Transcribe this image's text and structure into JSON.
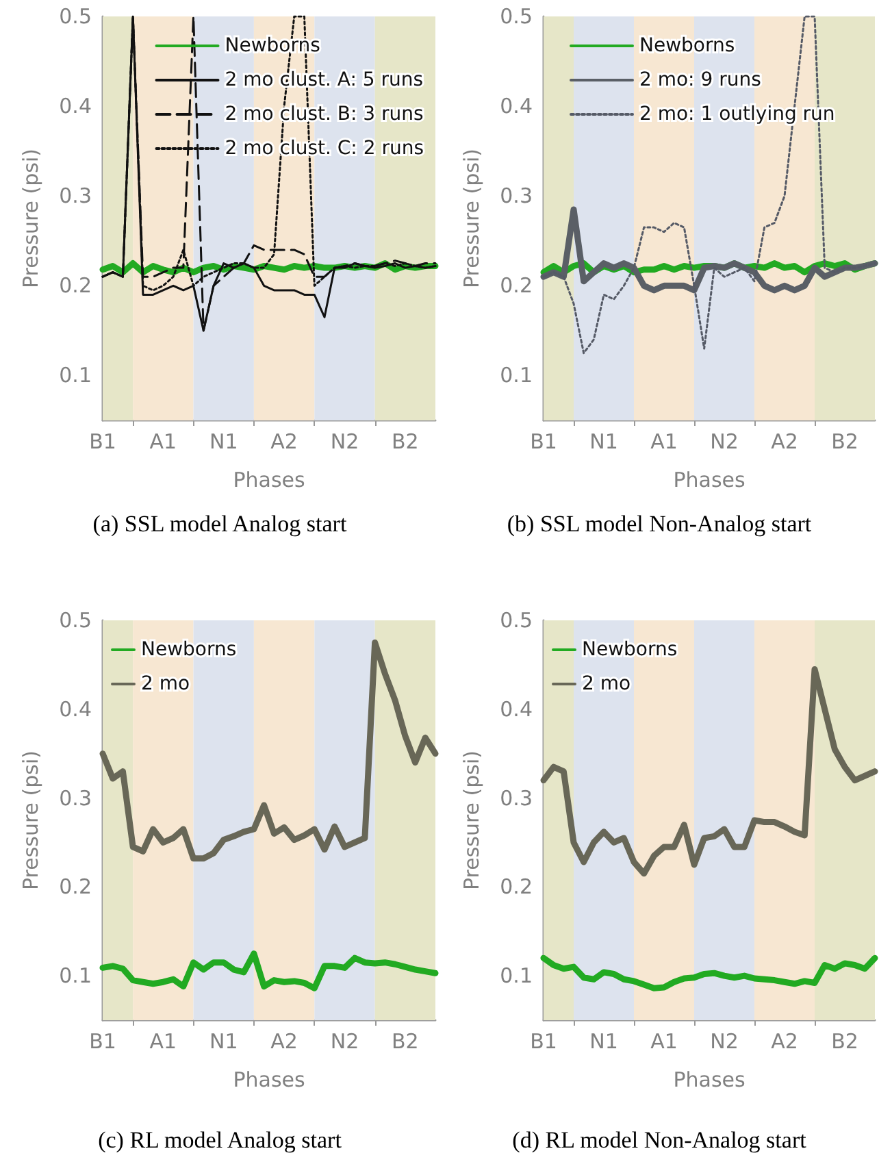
{
  "chart_data": [
    {
      "type": "line",
      "title": "(a) SSL model Analog start",
      "xlabel": "Phases",
      "ylabel": "Pressure (psi)",
      "legend": "top right",
      "grid": false,
      "categories": [
        "B1",
        null,
        null,
        null,
        null,
        null,
        "A1",
        null,
        null,
        null,
        null,
        null,
        "N1",
        null,
        null,
        null,
        null,
        null,
        "A2",
        null,
        null,
        null,
        null,
        null,
        "N2",
        null,
        null,
        null,
        null,
        null,
        "B2",
        null,
        null,
        null
      ],
      "ylim": [
        0.05,
        0.5
      ],
      "yticks": [
        0.1,
        0.2,
        0.3,
        0.4,
        0.5
      ],
      "series": [
        {
          "name": "Newborns",
          "color": "#22aa22",
          "line_style": "solid",
          "values": [
            0.218,
            0.222,
            0.215,
            0.225,
            0.215,
            0.222,
            0.218,
            0.215,
            0.22,
            0.215,
            0.22,
            0.222,
            0.218,
            0.222,
            0.22,
            0.218,
            0.222,
            0.22,
            0.218,
            0.222,
            0.22,
            0.222,
            0.22,
            0.22,
            0.222,
            0.22,
            0.222,
            0.22,
            0.225,
            0.218,
            0.222,
            0.22,
            0.222,
            0.222
          ]
        },
        {
          "name": "2 mo clust. A: 5 runs",
          "color": "#111111",
          "line_style": "solid",
          "values": [
            0.21,
            0.215,
            0.21,
            0.5,
            0.19,
            0.19,
            0.195,
            0.2,
            0.195,
            0.2,
            0.15,
            0.2,
            0.225,
            0.22,
            0.225,
            0.22,
            0.2,
            0.195,
            0.195,
            0.195,
            0.19,
            0.19,
            0.165,
            0.22,
            0.22,
            0.225,
            0.222,
            0.22,
            0.222,
            0.225,
            0.22,
            0.222,
            0.22,
            0.222
          ]
        },
        {
          "name": "2 mo clust. B: 3 runs",
          "color": "#111111",
          "line_style": "dashed",
          "values": [
            0.21,
            0.215,
            0.21,
            0.5,
            0.21,
            0.21,
            0.215,
            0.22,
            0.22,
            0.5,
            0.15,
            0.2,
            0.21,
            0.22,
            0.225,
            0.245,
            0.24,
            0.24,
            0.24,
            0.24,
            0.235,
            0.21,
            0.21,
            0.22,
            0.222,
            0.225,
            0.222,
            0.222,
            0.225,
            0.228,
            0.225,
            0.222,
            0.225,
            0.225
          ]
        },
        {
          "name": "2 mo clust. C: 2 runs",
          "color": "#111111",
          "line_style": "dotted",
          "values": [
            0.21,
            0.215,
            0.21,
            0.5,
            0.2,
            0.195,
            0.2,
            0.21,
            0.24,
            0.2,
            0.21,
            0.215,
            0.22,
            0.225,
            0.225,
            0.22,
            0.22,
            0.235,
            0.4,
            0.5,
            0.5,
            0.2,
            0.21,
            0.22,
            0.222,
            0.22,
            0.222,
            0.222,
            0.225,
            0.222,
            0.225,
            0.222,
            0.22,
            0.222
          ]
        }
      ]
    },
    {
      "type": "line",
      "title": "(b) SSL model Non-Analog start",
      "xlabel": "Phases",
      "ylabel": "Pressure (psi)",
      "legend": "top",
      "grid": false,
      "categories": [
        "B1",
        null,
        null,
        null,
        null,
        null,
        "N1",
        null,
        null,
        null,
        null,
        null,
        "A1",
        null,
        null,
        null,
        null,
        null,
        "N2",
        null,
        null,
        null,
        null,
        null,
        "A2",
        null,
        null,
        null,
        null,
        null,
        "B2",
        null,
        null,
        null
      ],
      "ylim": [
        0.05,
        0.5
      ],
      "yticks": [
        0.1,
        0.2,
        0.3,
        0.4,
        0.5
      ],
      "series": [
        {
          "name": "Newborns",
          "color": "#22aa22",
          "line_style": "solid",
          "values": [
            0.215,
            0.222,
            0.215,
            0.222,
            0.225,
            0.215,
            0.222,
            0.218,
            0.222,
            0.215,
            0.218,
            0.218,
            0.222,
            0.218,
            0.222,
            0.22,
            0.222,
            0.222,
            0.22,
            0.225,
            0.22,
            0.222,
            0.22,
            0.225,
            0.22,
            0.222,
            0.215,
            0.222,
            0.225,
            0.222,
            0.225,
            0.218,
            0.222,
            0.225
          ]
        },
        {
          "name": "2 mo: 9 runs",
          "color": "#5a5f66",
          "line_style": "solid",
          "values": [
            0.21,
            0.215,
            0.21,
            0.285,
            0.205,
            0.215,
            0.225,
            0.22,
            0.225,
            0.22,
            0.2,
            0.195,
            0.2,
            0.2,
            0.2,
            0.195,
            0.22,
            0.222,
            0.22,
            0.225,
            0.22,
            0.215,
            0.2,
            0.195,
            0.2,
            0.195,
            0.2,
            0.22,
            0.21,
            0.215,
            0.22,
            0.22,
            0.222,
            0.225
          ]
        },
        {
          "name": "2 mo: 1 outlying run",
          "color": "#555a66",
          "line_style": "dotted",
          "values": [
            0.21,
            0.215,
            0.21,
            0.18,
            0.125,
            0.14,
            0.19,
            0.185,
            0.2,
            0.22,
            0.265,
            0.265,
            0.26,
            0.27,
            0.265,
            0.2,
            0.13,
            0.22,
            0.21,
            0.215,
            0.22,
            0.205,
            0.265,
            0.27,
            0.3,
            0.4,
            0.5,
            0.5,
            0.22,
            0.215,
            0.22,
            0.22,
            0.222,
            0.225
          ]
        }
      ]
    },
    {
      "type": "line",
      "title": "(c) RL model Analog start",
      "xlabel": "Phases",
      "ylabel": "Pressure (psi)",
      "legend": "top left",
      "grid": false,
      "categories": [
        "B1",
        null,
        null,
        null,
        null,
        null,
        "A1",
        null,
        null,
        null,
        null,
        null,
        "N1",
        null,
        null,
        null,
        null,
        null,
        "A2",
        null,
        null,
        null,
        null,
        null,
        "N2",
        null,
        null,
        null,
        null,
        null,
        "B2",
        null,
        null,
        null
      ],
      "ylim": [
        0.05,
        0.5
      ],
      "yticks": [
        0.1,
        0.2,
        0.3,
        0.4,
        0.5
      ],
      "series": [
        {
          "name": "Newborns",
          "color": "#22aa22",
          "line_style": "solid",
          "values": [
            0.109,
            0.111,
            0.108,
            0.095,
            0.093,
            0.091,
            0.093,
            0.096,
            0.088,
            0.115,
            0.107,
            0.115,
            0.115,
            0.107,
            0.104,
            0.125,
            0.088,
            0.095,
            0.093,
            0.094,
            0.092,
            0.086,
            0.111,
            0.111,
            0.109,
            0.12,
            0.115,
            0.114,
            0.115,
            0.113,
            0.11,
            0.107,
            0.105,
            0.103
          ]
        },
        {
          "name": "2 mo",
          "color": "#686757",
          "line_style": "solid",
          "values": [
            0.35,
            0.322,
            0.33,
            0.245,
            0.24,
            0.265,
            0.25,
            0.255,
            0.265,
            0.232,
            0.232,
            0.238,
            0.253,
            0.257,
            0.262,
            0.265,
            0.292,
            0.26,
            0.267,
            0.253,
            0.258,
            0.265,
            0.242,
            0.268,
            0.245,
            0.25,
            0.255,
            0.475,
            0.44,
            0.41,
            0.37,
            0.34,
            0.368,
            0.35
          ]
        }
      ]
    },
    {
      "type": "line",
      "title": "(d) RL model Non-Analog start",
      "xlabel": "Phases",
      "ylabel": "Pressure (psi)",
      "legend": "top left",
      "grid": false,
      "categories": [
        "B1",
        null,
        null,
        null,
        null,
        null,
        "N1",
        null,
        null,
        null,
        null,
        null,
        "A1",
        null,
        null,
        null,
        null,
        null,
        "N2",
        null,
        null,
        null,
        null,
        null,
        "A2",
        null,
        null,
        null,
        null,
        null,
        "B2",
        null,
        null,
        null
      ],
      "ylim": [
        0.05,
        0.5
      ],
      "yticks": [
        0.1,
        0.2,
        0.3,
        0.4,
        0.5
      ],
      "series": [
        {
          "name": "Newborns",
          "color": "#22aa22",
          "line_style": "solid",
          "values": [
            0.12,
            0.112,
            0.108,
            0.11,
            0.098,
            0.096,
            0.104,
            0.102,
            0.096,
            0.094,
            0.09,
            0.086,
            0.087,
            0.093,
            0.097,
            0.098,
            0.102,
            0.103,
            0.1,
            0.098,
            0.1,
            0.097,
            0.096,
            0.095,
            0.093,
            0.091,
            0.094,
            0.092,
            0.112,
            0.108,
            0.114,
            0.112,
            0.108,
            0.12
          ]
        },
        {
          "name": "2 mo",
          "color": "#686757",
          "line_style": "solid",
          "values": [
            0.32,
            0.335,
            0.33,
            0.25,
            0.228,
            0.25,
            0.262,
            0.25,
            0.255,
            0.228,
            0.215,
            0.235,
            0.245,
            0.245,
            0.27,
            0.225,
            0.255,
            0.257,
            0.265,
            0.245,
            0.245,
            0.275,
            0.273,
            0.273,
            0.268,
            0.262,
            0.258,
            0.445,
            0.4,
            0.355,
            0.335,
            0.32,
            0.325,
            0.33
          ]
        }
      ]
    }
  ]
}
